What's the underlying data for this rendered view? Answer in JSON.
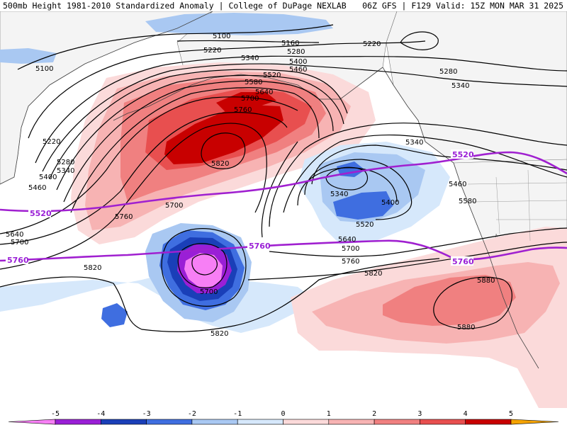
{
  "header": {
    "left_title": "500mb Height 1981-2010 Standardized Anomaly | College of DuPage NEXLAB",
    "right_title": "06Z GFS | F129 Valid: 15Z MON MAR 31 2025"
  },
  "colors": {
    "n5": "#f77ff5",
    "n4": "#9a1fd6",
    "n3": "#1a3fb8",
    "n2": "#3f6ee0",
    "n1": "#a9c8f2",
    "n05": "#d6e8fb",
    "p05": "#fbdada",
    "p1": "#f7b3b3",
    "p2": "#f08080",
    "p3": "#e84f4f",
    "p4": "#c80000",
    "p5": "#f5a300",
    "contour": "#000000",
    "highlight": "#a020d0",
    "land": "#f0f0f0"
  },
  "map": {
    "contour_labels": [
      "5100",
      "5160",
      "5220",
      "5280",
      "5340",
      "5400",
      "5460",
      "5520",
      "5580",
      "5640",
      "5700",
      "5760",
      "5820",
      "5880"
    ],
    "labels": {
      "l5100a": "5100",
      "l5100b": "5100",
      "l5160": "5160",
      "l5220a": "5220",
      "l5220b": "5220",
      "l5220c": "5220",
      "l5280a": "5280",
      "l5280b": "5280",
      "l5280c": "5280",
      "l5340a": "5340",
      "l5340b": "5340",
      "l5340c": "5340",
      "l5340d": "5340",
      "l5340e": "5340",
      "l5400a": "5400",
      "l5400b": "5400",
      "l5400c": "5400",
      "l5460a": "5460",
      "l5460b": "5460",
      "l5460c": "5460",
      "l5520a": "5520",
      "l5520b": "5520",
      "l5580a": "5580",
      "l5580b": "5580",
      "l5640a": "5640",
      "l5640b": "5640",
      "l5640c": "5640",
      "l5700a": "5700",
      "l5700b": "5700",
      "l5700c": "5700",
      "l5700d": "5700",
      "l5700e": "5700",
      "l5760a": "5760",
      "l5760b": "5760",
      "l5760c": "5760",
      "l5820a": "5820",
      "l5820b": "5820",
      "l5820c": "5820",
      "l5820d": "5820",
      "l5880a": "5880",
      "l5880b": "5880"
    },
    "highlight_labels": {
      "h5520a": "5520",
      "h5520b": "5520",
      "h5760a": "5760",
      "h5760b": "5760",
      "h5760c": "5760"
    }
  },
  "colorbar": {
    "ticks": [
      "-5",
      "-4",
      "-3",
      "-2",
      "-1",
      "0",
      "1",
      "2",
      "3",
      "4",
      "5"
    ],
    "bins": [
      "#f77ff5",
      "#9a1fd6",
      "#1a3fb8",
      "#3f6ee0",
      "#a9c8f2",
      "#d6e8fb",
      "#fbdada",
      "#f7b3b3",
      "#f08080",
      "#e84f4f",
      "#c80000",
      "#f5a300"
    ]
  }
}
